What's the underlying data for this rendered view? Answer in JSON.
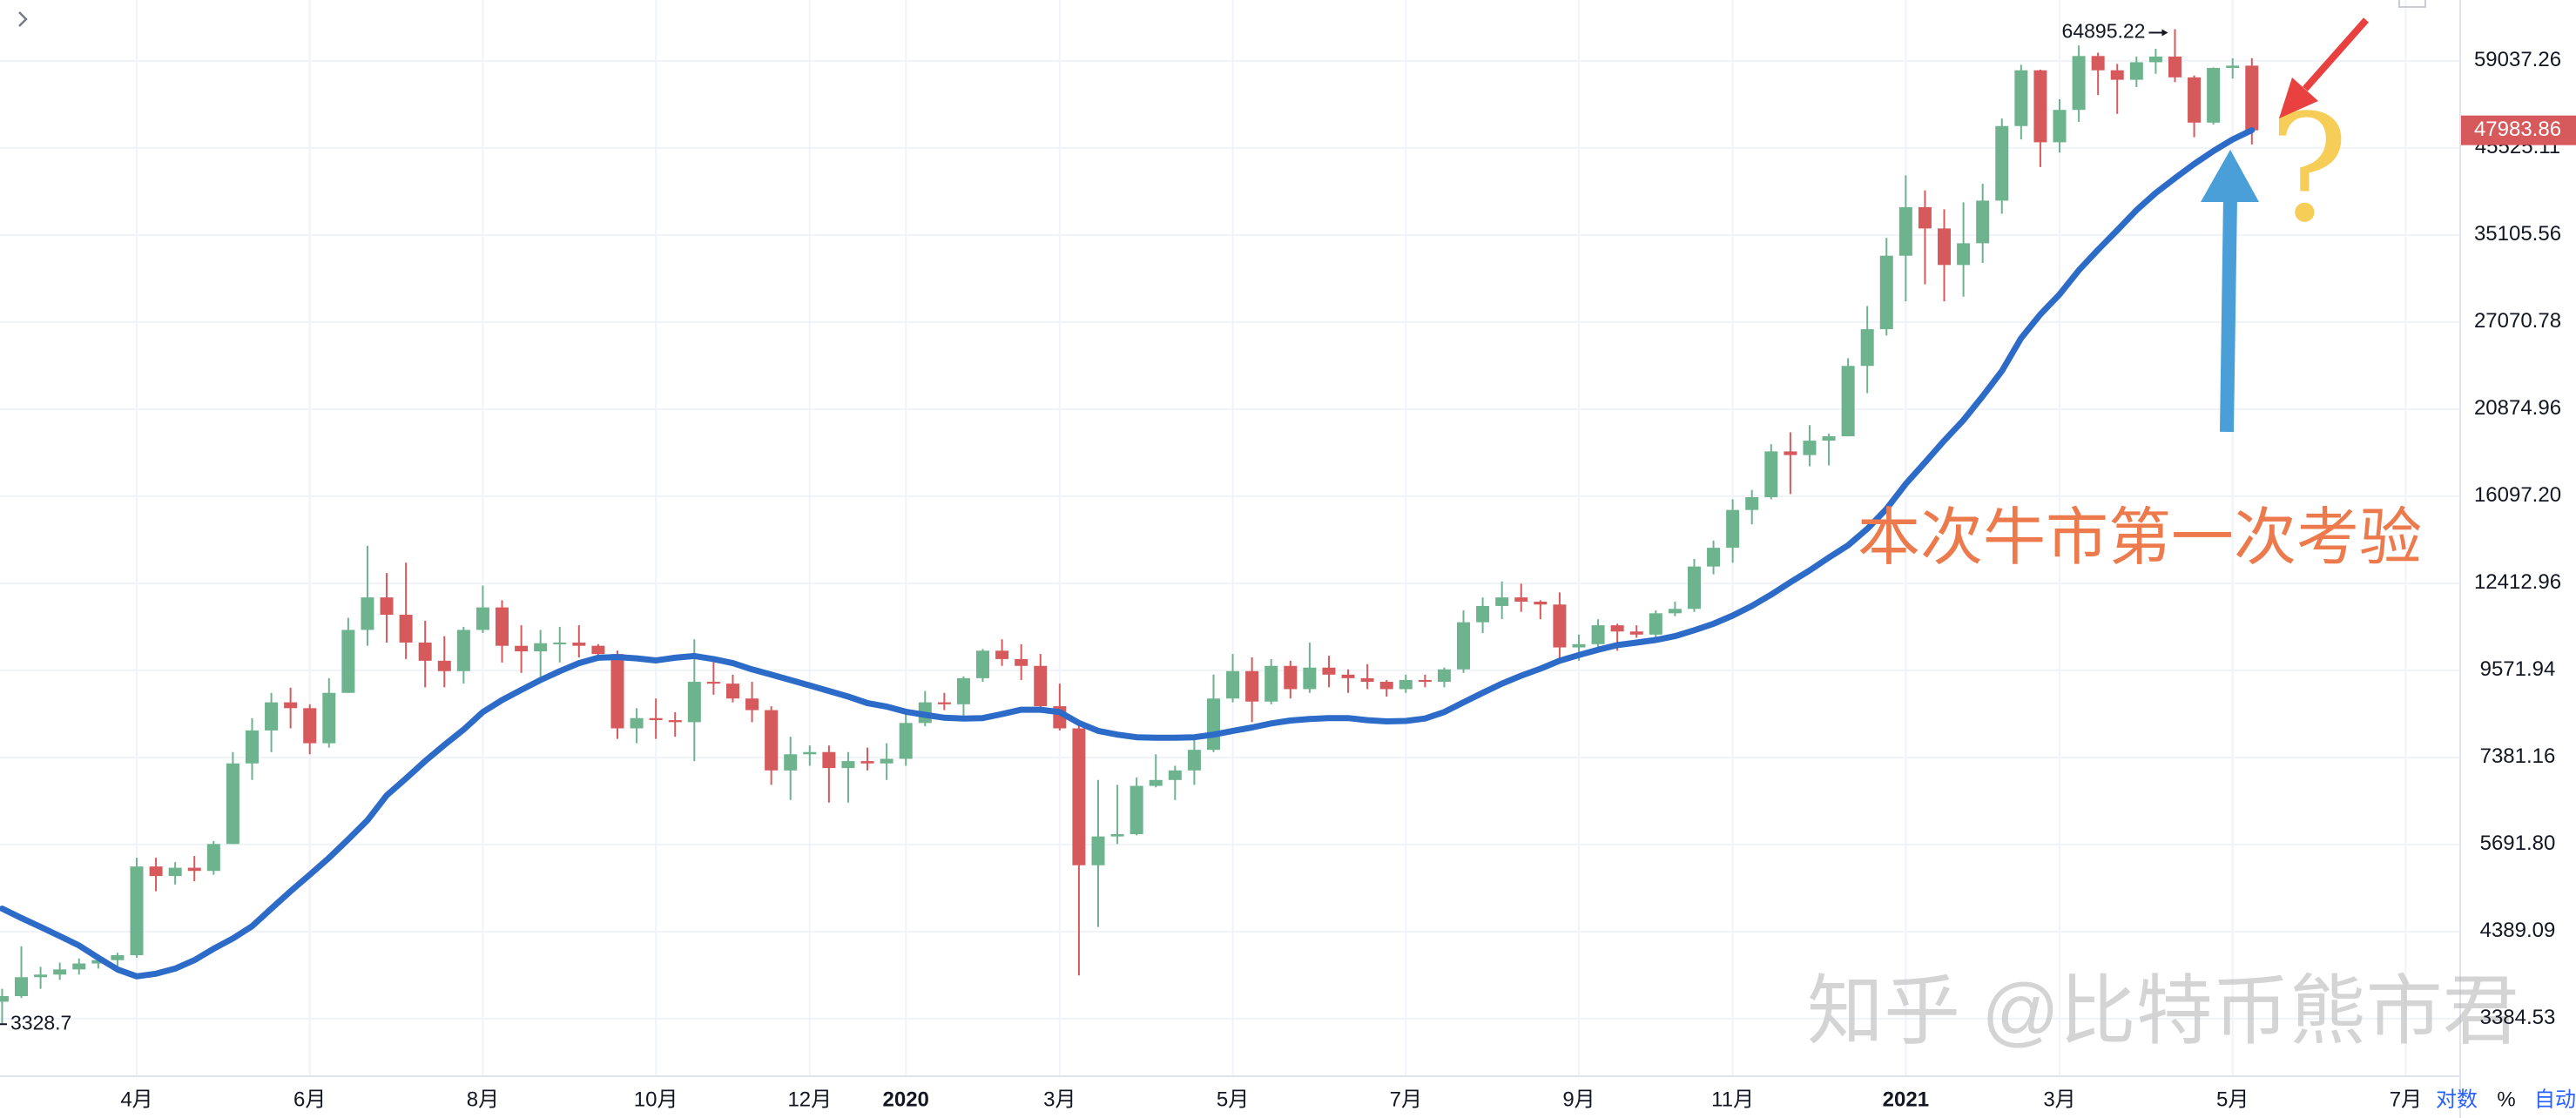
{
  "chart_data": {
    "type": "candlestick",
    "log_scale": true,
    "grid": true,
    "ylim": [
      2850,
      70800
    ],
    "yticks": [
      3384.53,
      4389.09,
      {
        "value": 5691.8,
        "label": "5691.80"
      },
      7381.16,
      9571.94,
      12412.96,
      {
        "value": 16097.2,
        "label": "16097.20"
      },
      20874.96,
      27070.78,
      35105.56,
      45525.11,
      59037.26
    ],
    "categories": [
      null,
      null,
      null,
      null,
      null,
      null,
      null,
      "4月",
      null,
      null,
      null,
      null,
      null,
      null,
      null,
      null,
      "6月",
      null,
      null,
      null,
      null,
      null,
      null,
      null,
      null,
      "8月",
      null,
      null,
      null,
      null,
      null,
      null,
      null,
      null,
      "10月",
      null,
      null,
      null,
      null,
      null,
      null,
      null,
      "12月",
      null,
      null,
      null,
      null,
      "2020",
      null,
      null,
      null,
      null,
      null,
      null,
      null,
      "3月",
      null,
      null,
      null,
      null,
      null,
      null,
      null,
      null,
      "5月",
      null,
      null,
      null,
      null,
      null,
      null,
      null,
      null,
      "7月",
      null,
      null,
      null,
      null,
      null,
      null,
      null,
      null,
      "9月",
      null,
      null,
      null,
      null,
      null,
      null,
      null,
      "11月",
      null,
      null,
      null,
      null,
      null,
      null,
      null,
      null,
      "2021",
      null,
      null,
      null,
      null,
      null,
      null,
      null,
      "3月",
      null,
      null,
      null,
      null,
      null,
      null,
      null,
      null,
      "5月",
      null,
      null,
      null,
      null,
      null,
      null,
      null,
      null,
      "7月",
      null,
      null
    ],
    "open": [
      3560,
      3620,
      3830,
      3860,
      3920,
      3990,
      4030,
      4090,
      5330,
      5180,
      5310,
      5260,
      5700,
      7250,
      8000,
      8700,
      8550,
      7700,
      8950,
      10800,
      11900,
      11300,
      10400,
      9850,
      9550,
      10800,
      11550,
      10300,
      10130,
      10380,
      10400,
      10300,
      10050,
      8050,
      8300,
      8250,
      8200,
      9250,
      9200,
      8800,
      8500,
      7100,
      7450,
      7500,
      7150,
      7300,
      7250,
      7350,
      8180,
      8700,
      8650,
      9350,
      10150,
      9900,
      9700,
      8600,
      8050,
      5350,
      5830,
      5870,
      6780,
      6900,
      7100,
      7550,
      8800,
      9550,
      8720,
      9700,
      9050,
      9650,
      9450,
      9350,
      9250,
      9050,
      9300,
      9250,
      9600,
      11050,
      11600,
      11900,
      11750,
      11650,
      10250,
      10350,
      10950,
      10750,
      10650,
      11350,
      11500,
      13050,
      13800,
      15450,
      16050,
      18400,
      18200,
      19000,
      19250,
      23750,
      26500,
      33000,
      38150,
      35800,
      32100,
      34250,
      38900,
      48600,
      57400,
      46300,
      51000,
      59900,
      57400,
      55800,
      58800,
      59800,
      56200,
      49100,
      57800,
      58200,
      null,
      null,
      null,
      null,
      null,
      null,
      null,
      null,
      null,
      null
    ],
    "high": [
      3700,
      4200,
      3950,
      4000,
      4050,
      4100,
      4120,
      5470,
      5470,
      5400,
      5500,
      5750,
      7500,
      8300,
      8950,
      9090,
      8650,
      9350,
      11200,
      13880,
      12800,
      13200,
      11100,
      10600,
      10900,
      12330,
      11800,
      10950,
      10800,
      10900,
      10950,
      10350,
      10150,
      8550,
      8800,
      8450,
      10500,
      9950,
      9450,
      9250,
      8600,
      7850,
      7650,
      7650,
      7500,
      7600,
      7700,
      8450,
      9000,
      8950,
      9400,
      10200,
      10500,
      10350,
      10050,
      9200,
      8200,
      6900,
      6800,
      6950,
      7450,
      7200,
      7780,
      9450,
      10050,
      9950,
      9900,
      9850,
      10400,
      10000,
      9600,
      9750,
      9300,
      9450,
      9450,
      9650,
      11450,
      11900,
      12480,
      12400,
      11800,
      12080,
      10650,
      11150,
      11000,
      10950,
      11450,
      11750,
      13350,
      14100,
      15950,
      16400,
      18800,
      19480,
      19900,
      19400,
      24300,
      28400,
      34800,
      41950,
      40100,
      37900,
      38700,
      40900,
      49700,
      58350,
      57500,
      52650,
      61800,
      60500,
      58500,
      59800,
      61200,
      64895.22,
      56500,
      57900,
      59500,
      59500,
      null,
      null,
      null,
      null,
      null,
      null,
      null,
      null,
      null,
      null
    ],
    "low": [
      3328.7,
      3600,
      3700,
      3800,
      3860,
      3930,
      3950,
      4060,
      4950,
      5050,
      5100,
      5200,
      5700,
      6900,
      7500,
      8050,
      7450,
      7600,
      8950,
      10300,
      10400,
      9900,
      9100,
      9100,
      9200,
      10700,
      9800,
      9500,
      9350,
      9800,
      9950,
      9900,
      7800,
      7700,
      7800,
      7850,
      7300,
      8900,
      8700,
      8200,
      6800,
      6500,
      7200,
      6450,
      6450,
      7100,
      6900,
      7200,
      8100,
      8500,
      8300,
      9250,
      9700,
      9300,
      8550,
      8000,
      3850,
      4450,
      5700,
      5850,
      6750,
      6500,
      6800,
      7500,
      8700,
      8200,
      8650,
      8800,
      8950,
      9100,
      8950,
      9050,
      8850,
      8950,
      9100,
      9100,
      9500,
      10700,
      11150,
      11400,
      11150,
      9900,
      9850,
      10200,
      10150,
      10550,
      10550,
      11250,
      11400,
      12750,
      13200,
      14800,
      15950,
      16200,
      17600,
      17650,
      19250,
      21900,
      26000,
      28800,
      30300,
      28800,
      29200,
      32300,
      37400,
      46700,
      43000,
      44900,
      49200,
      53300,
      50400,
      54600,
      56800,
      55400,
      47000,
      48800,
      56000,
      46000,
      null,
      null,
      null,
      null,
      null,
      null,
      null,
      null,
      null,
      null
    ],
    "close": [
      3620,
      3830,
      3860,
      3920,
      3990,
      4030,
      4090,
      5330,
      5180,
      5310,
      5260,
      5700,
      7250,
      8000,
      8700,
      8550,
      7700,
      8950,
      10800,
      11900,
      11300,
      10400,
      9850,
      9550,
      10800,
      11550,
      10300,
      10130,
      10380,
      10400,
      10300,
      10050,
      8050,
      8300,
      8250,
      8200,
      9250,
      9200,
      8800,
      8500,
      7100,
      7450,
      7500,
      7150,
      7300,
      7250,
      7350,
      8180,
      8700,
      8650,
      9350,
      10150,
      9900,
      9700,
      8600,
      8050,
      5350,
      5830,
      5870,
      6780,
      6900,
      7100,
      7550,
      8800,
      9550,
      8720,
      9700,
      9050,
      9650,
      9450,
      9350,
      9250,
      9050,
      9300,
      9250,
      9600,
      11050,
      11600,
      11900,
      11750,
      11650,
      10250,
      10350,
      10950,
      10750,
      10650,
      11350,
      11500,
      13050,
      13800,
      15450,
      16050,
      18400,
      18200,
      19000,
      19250,
      23750,
      26500,
      33000,
      38150,
      35800,
      32100,
      34250,
      38900,
      48600,
      57400,
      46300,
      51000,
      59900,
      57400,
      55800,
      58800,
      59800,
      56200,
      49100,
      57800,
      58200,
      47983.86,
      null,
      null,
      null,
      null,
      null,
      null,
      null,
      null,
      null,
      null
    ],
    "up_color": "#6cb38e",
    "down_color": "#d65a5c",
    "ma": {
      "color": "#2d6bc8",
      "values": [
        4700,
        4570,
        4450,
        4330,
        4210,
        4060,
        3920,
        3840,
        3870,
        3930,
        4030,
        4170,
        4300,
        4460,
        4700,
        4950,
        5200,
        5470,
        5780,
        6120,
        6590,
        6930,
        7300,
        7660,
        8020,
        8450,
        8760,
        9030,
        9300,
        9550,
        9780,
        9940,
        9960,
        9920,
        9860,
        9940,
        9990,
        9900,
        9780,
        9600,
        9450,
        9300,
        9150,
        9000,
        8850,
        8680,
        8590,
        8460,
        8380,
        8310,
        8290,
        8300,
        8400,
        8510,
        8510,
        8450,
        8180,
        7990,
        7900,
        7840,
        7830,
        7830,
        7840,
        7900,
        7990,
        8070,
        8170,
        8240,
        8280,
        8300,
        8300,
        8250,
        8220,
        8230,
        8290,
        8450,
        8700,
        8950,
        9200,
        9420,
        9620,
        9850,
        10020,
        10180,
        10320,
        10400,
        10480,
        10600,
        10790,
        11000,
        11270,
        11600,
        12000,
        12450,
        12900,
        13400,
        13900,
        14600,
        15500,
        16700,
        17800,
        19000,
        20200,
        21700,
        23400,
        25800,
        27700,
        29400,
        31600,
        33600,
        35600,
        37800,
        39800,
        41600,
        43400,
        45100,
        46700,
        48000,
        null,
        null,
        null,
        null,
        null,
        null,
        null,
        null,
        null,
        null
      ]
    },
    "annotation": "本次牛市第一次考验",
    "annotation_mark": "?",
    "watermark": "知乎 @比特币熊市君",
    "controls": [
      "对数",
      "%",
      "自动"
    ]
  }
}
